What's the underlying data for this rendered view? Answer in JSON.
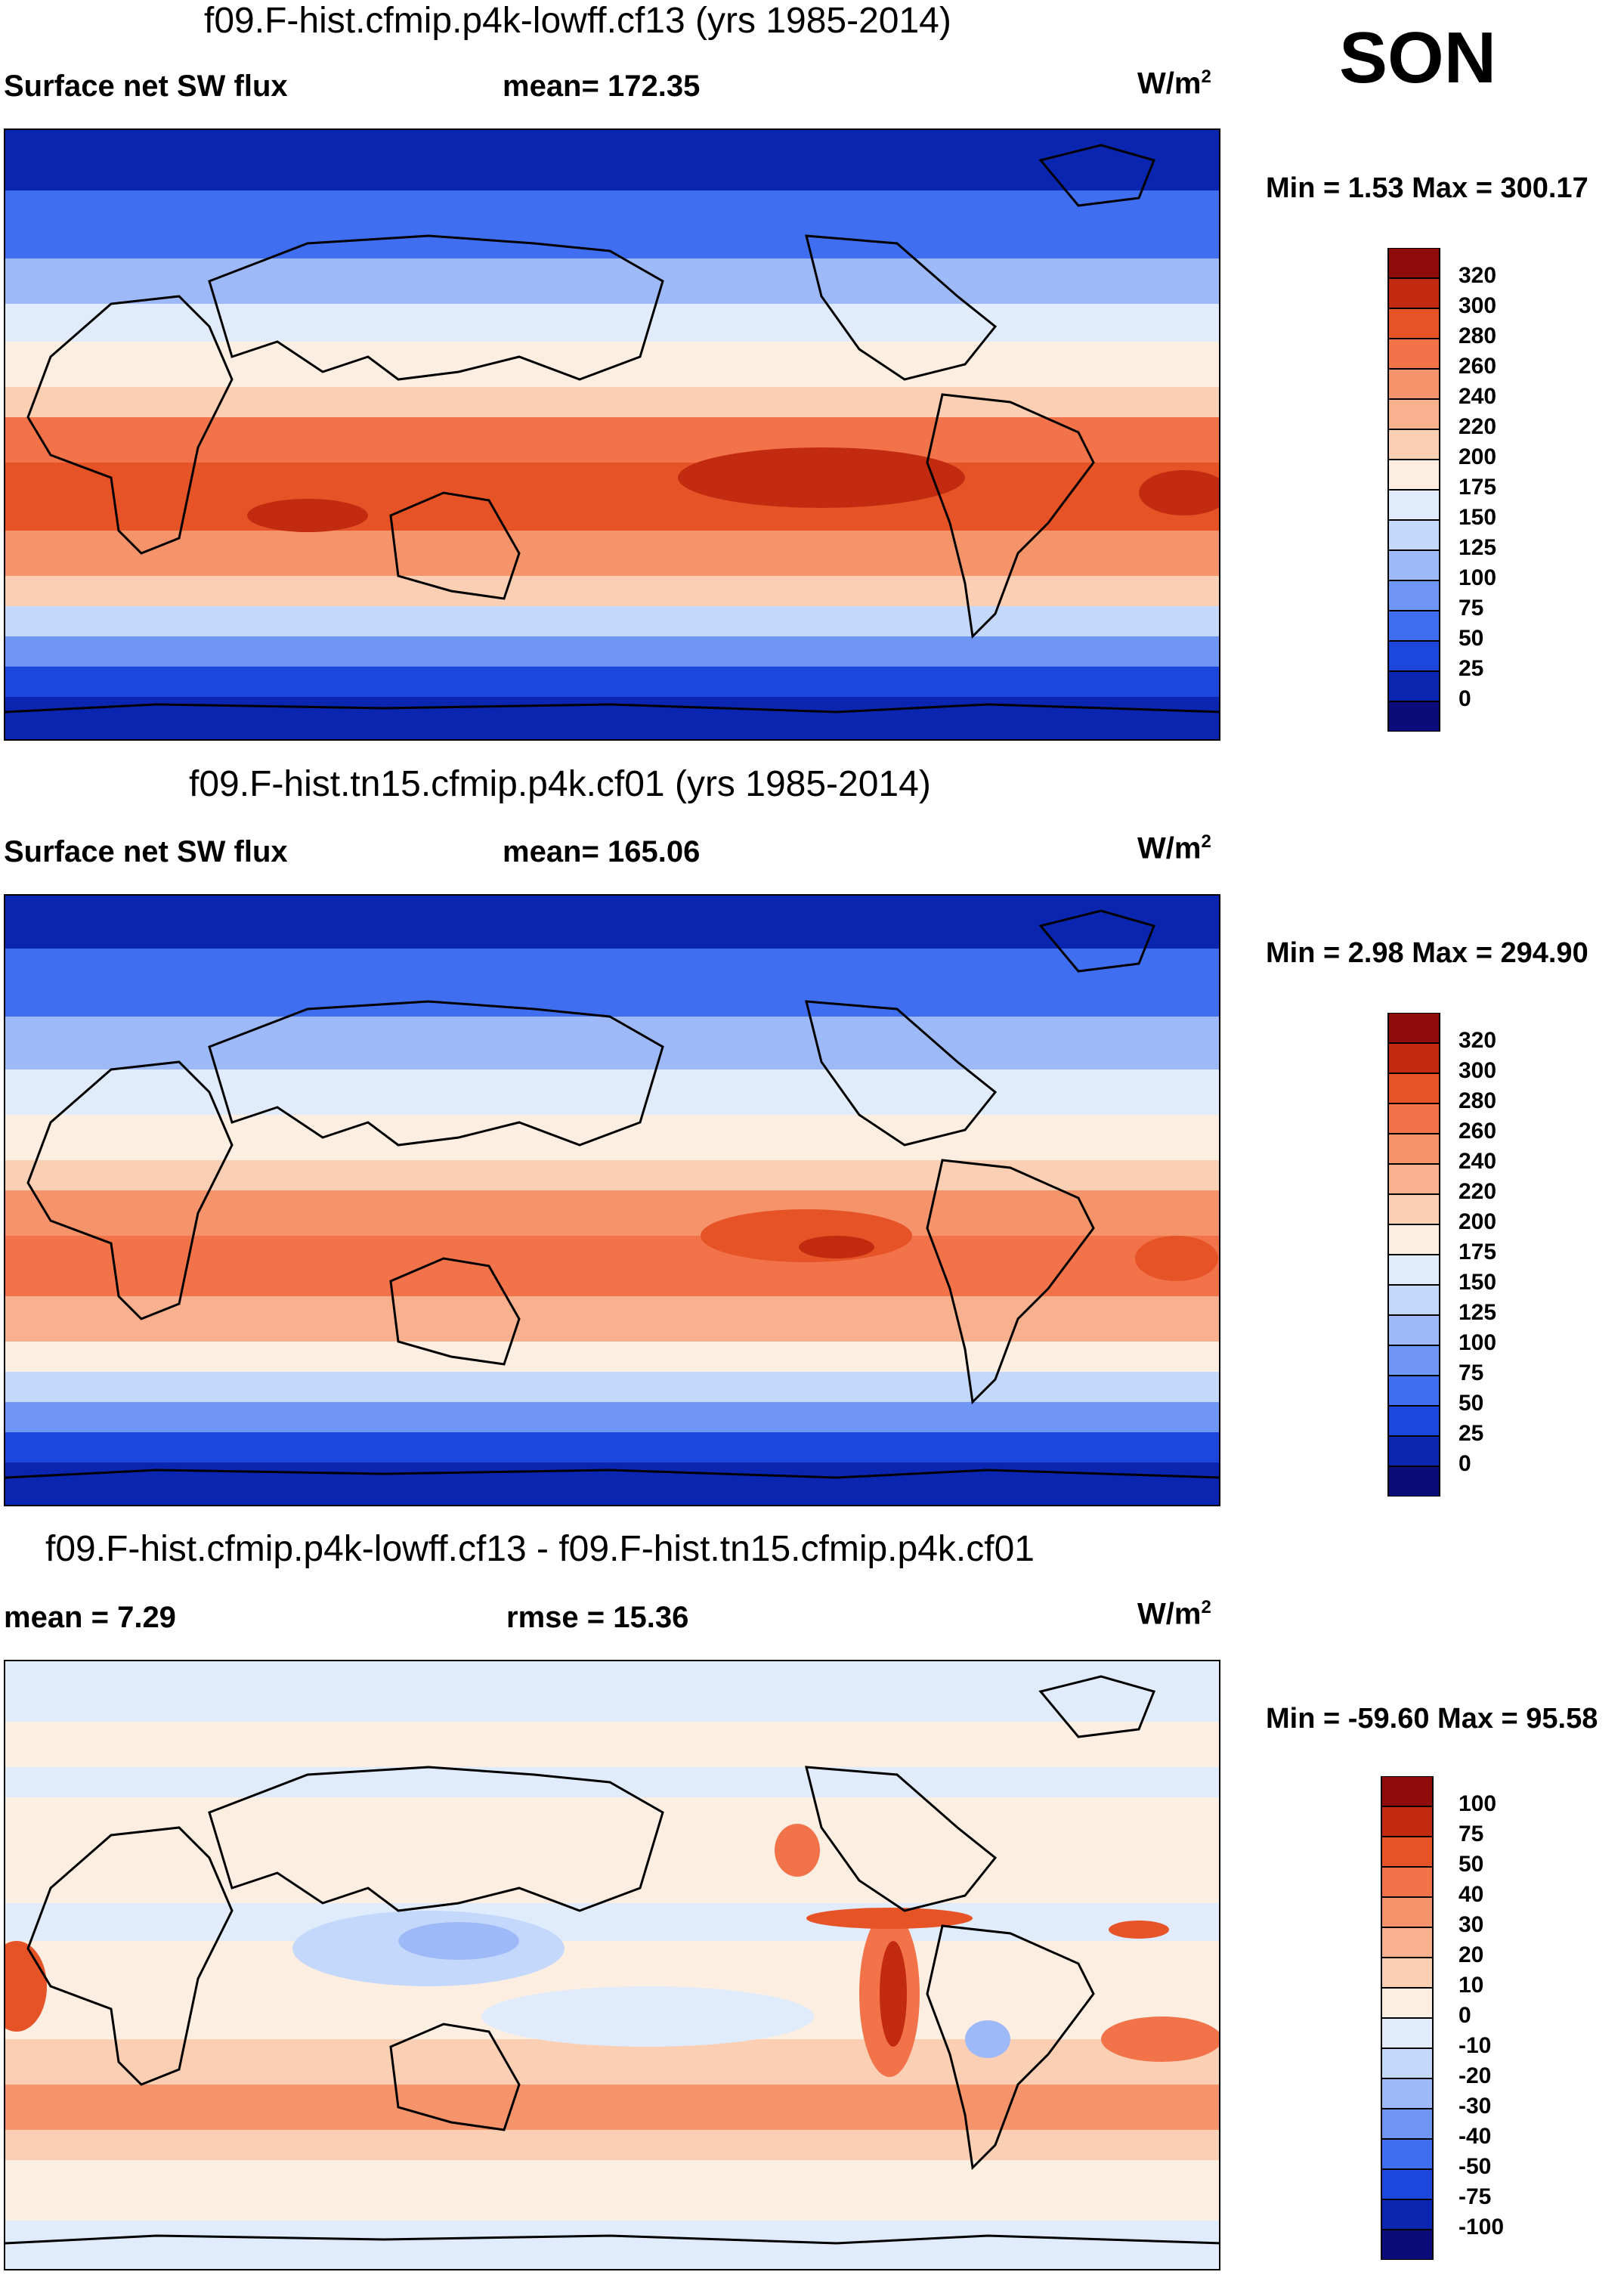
{
  "season": "SON",
  "colors": {
    "abs": [
      "#0b0b7a",
      "#0a25b0",
      "#1d47dc",
      "#3f6ef0",
      "#6f95f5",
      "#9db9f8",
      "#c3d8fa",
      "#e0ecfb",
      "#fdeee2",
      "#fbcfb4",
      "#f8b08e",
      "#f5936b",
      "#f2734a",
      "#e65326",
      "#c32b10",
      "#8e0d0a"
    ],
    "diff": [
      "#0b0b7a",
      "#0a25b0",
      "#1d47dc",
      "#3f6ef0",
      "#6f95f5",
      "#9db9f8",
      "#c3d8fa",
      "#e0ecfb",
      "#fdeee2",
      "#fbcfb4",
      "#f8b08e",
      "#f5936b",
      "#f2734a",
      "#e65326",
      "#c32b10",
      "#8e0d0a"
    ]
  },
  "panels": [
    {
      "title": "f09.F-hist.cfmip.p4k-lowff.cf13 (yrs 1985-2014)",
      "left_text": "Surface net SW flux",
      "center_text": "mean= 172.35",
      "units_main": "W/m",
      "units_sup": "2",
      "minmax": "Min =   1.53 Max = 300.17",
      "colorbar_labels": [
        "320",
        "300",
        "280",
        "260",
        "240",
        "220",
        "200",
        "175",
        "150",
        "125",
        "100",
        "75",
        "50",
        "25",
        "0"
      ]
    },
    {
      "title": "f09.F-hist.tn15.cfmip.p4k.cf01 (yrs 1985-2014)",
      "left_text": "Surface net SW flux",
      "center_text": "mean= 165.06",
      "units_main": "W/m",
      "units_sup": "2",
      "minmax": "Min =   2.98 Max = 294.90",
      "colorbar_labels": [
        "320",
        "300",
        "280",
        "260",
        "240",
        "220",
        "200",
        "175",
        "150",
        "125",
        "100",
        "75",
        "50",
        "25",
        "0"
      ]
    },
    {
      "title": "f09.F-hist.cfmip.p4k-lowff.cf13 - f09.F-hist.tn15.cfmip.p4k.cf01",
      "left_text": "mean =   7.29",
      "center_text": "rmse =  15.36",
      "units_main": "W/m",
      "units_sup": "2",
      "minmax": "Min = -59.60 Max =  95.58",
      "colorbar_labels": [
        "100",
        "75",
        "50",
        "40",
        "30",
        "20",
        "10",
        "0",
        "-10",
        "-20",
        "-30",
        "-40",
        "-50",
        "-75",
        "-100"
      ]
    }
  ]
}
